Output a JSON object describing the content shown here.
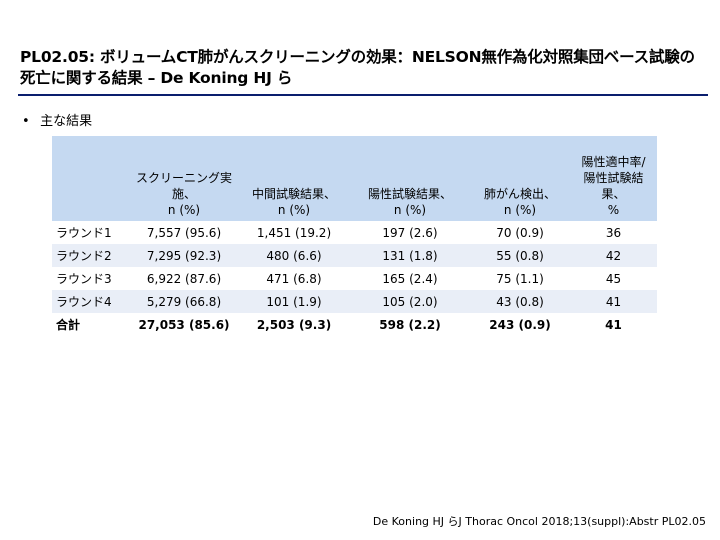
{
  "title": "PL02.05: ボリュームCT肺がんスクリーニングの効果：NELSON無作為化対照集団ベース試験の死亡に関する結果 – De Koning HJ ら",
  "bullet": "主な結果",
  "table": {
    "headers": [
      {
        "line1": "",
        "line2": ""
      },
      {
        "line1": "スクリーニング実施、",
        "line2": "n (%)"
      },
      {
        "line1": "中間試験結果、",
        "line2": "n (%)"
      },
      {
        "line1": "陽性試験結果、",
        "line2": "n (%)"
      },
      {
        "line1": "肺がん検出、",
        "line2": "n (%)"
      },
      {
        "line1": "陽性適中率/陽性試験結果、",
        "line2": "%"
      }
    ],
    "rows": [
      {
        "label": "ラウンド1",
        "cells": [
          "7,557 (95.6)",
          "1,451 (19.2)",
          "197 (2.6)",
          "70 (0.9)",
          "36"
        ]
      },
      {
        "label": "ラウンド2",
        "cells": [
          "7,295 (92.3)",
          "480 (6.6)",
          "131 (1.8)",
          "55 (0.8)",
          "42"
        ]
      },
      {
        "label": "ラウンド3",
        "cells": [
          "6,922 (87.6)",
          "471 (6.8)",
          "165 (2.4)",
          "75 (1.1)",
          "45"
        ]
      },
      {
        "label": "ラウンド4",
        "cells": [
          "5,279 (66.8)",
          "101 (1.9)",
          "105 (2.0)",
          "43 (0.8)",
          "41"
        ]
      },
      {
        "label": "合計",
        "cells": [
          "27,053 (85.6)",
          "2,503 (9.3)",
          "598 (2.2)",
          "243 (0.9)",
          "41"
        ]
      }
    ]
  },
  "footnote": "De Koning HJ らJ Thorac Oncol 2018;13(suppl):Abstr PL02.05",
  "colors": {
    "rule": "#0a1e6e",
    "header_bg": "#c5d9f1",
    "alt_bg": "#e9eef7"
  }
}
